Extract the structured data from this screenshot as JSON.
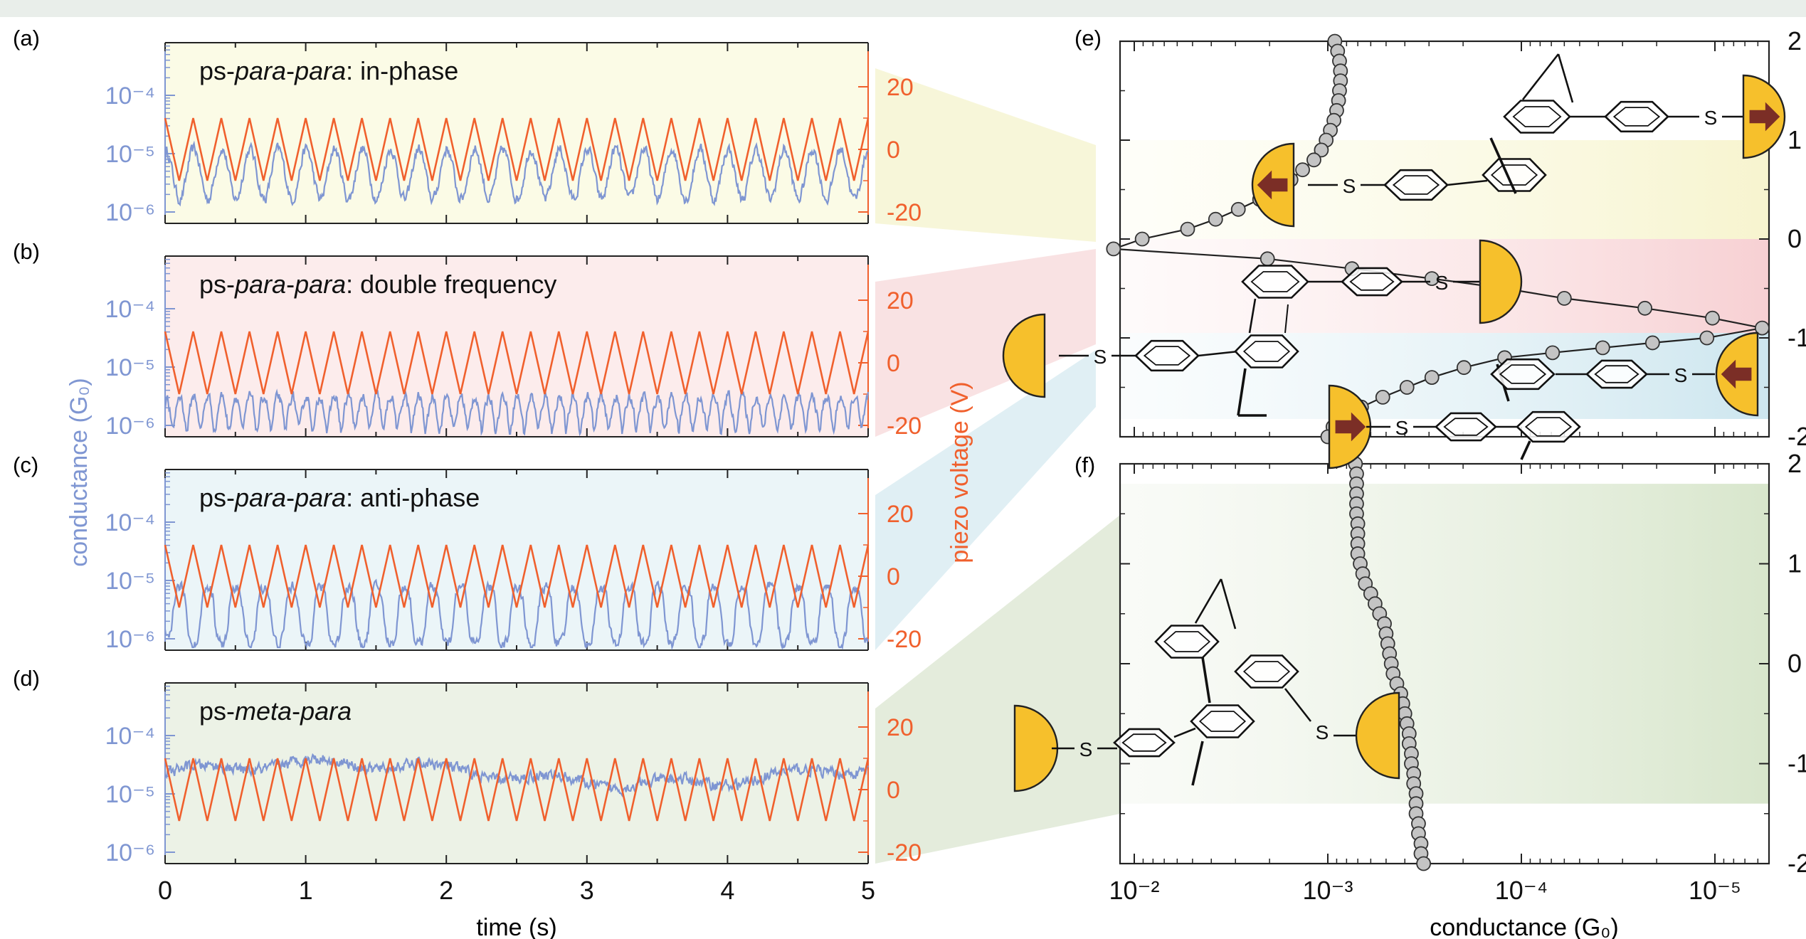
{
  "panel_labels": [
    "(a)",
    "(b)",
    "(c)",
    "(d)",
    "(e)",
    "(f)"
  ],
  "left_axes": {
    "ylabel": "conductance (G₀)",
    "ylabel_right": "piezo voltage (V)",
    "xlabel": "time (s)",
    "x_ticks": [
      "0",
      "1",
      "2",
      "3",
      "4",
      "5"
    ],
    "y_ticks_left": [
      "10⁻⁴",
      "10⁻⁵",
      "10⁻⁶"
    ],
    "y_ticks_right": [
      "20",
      "0",
      "-20"
    ]
  },
  "right_axes": {
    "xlabel": "conductance (G₀)",
    "x_ticks": [
      "10⁻²",
      "10⁻³",
      "10⁻⁴",
      "10⁻⁵"
    ],
    "y_ticks_e": [
      "2",
      "1",
      "0",
      "-1",
      "-2"
    ],
    "y_ticks_f": [
      "2",
      "1",
      "0",
      "-1",
      "-2"
    ]
  },
  "molecule_text": {
    "sulfur": "S"
  },
  "colors": {
    "conductance": "#7f96d2",
    "piezo": "#f0602d",
    "in_phase_bg": "#fbfbe6",
    "double_bg": "#fcecec",
    "anti_bg": "#ebf5f8",
    "meta_bg": "#ecf2e6",
    "gold": "#f6c02c",
    "arrow": "#7b2e26",
    "dot": "#c4c4c4"
  },
  "chart_data": [
    {
      "type": "line",
      "panel": "(a)",
      "title_parts": [
        "ps-",
        "para",
        "-",
        "para",
        ": in-phase"
      ],
      "x_range": [
        0,
        5
      ],
      "series": [
        {
          "axis": "piezo voltage (V)",
          "waveform": "triangle",
          "cycles": 25,
          "min": -10,
          "max": 10
        },
        {
          "axis": "conductance (G₀)",
          "log_range": [
            -5.9,
            -4.8
          ],
          "pattern": "in-phase"
        }
      ]
    },
    {
      "type": "line",
      "panel": "(b)",
      "title_parts": [
        "ps-",
        "para",
        "-",
        "para",
        ": double frequency"
      ],
      "x_range": [
        0,
        5
      ],
      "series": [
        {
          "axis": "piezo voltage (V)",
          "waveform": "triangle",
          "cycles": 25,
          "min": -10,
          "max": 10
        },
        {
          "axis": "conductance (G₀)",
          "log_range": [
            -6.2,
            -5.4
          ],
          "pattern": "double frequency"
        }
      ]
    },
    {
      "type": "line",
      "panel": "(c)",
      "title_parts": [
        "ps-",
        "para",
        "-",
        "para",
        ": anti-phase"
      ],
      "x_range": [
        0,
        5
      ],
      "series": [
        {
          "axis": "piezo voltage (V)",
          "waveform": "triangle",
          "cycles": 25,
          "min": -10,
          "max": 10
        },
        {
          "axis": "conductance (G₀)",
          "log_range": [
            -6.1,
            -5.1
          ],
          "pattern": "anti-phase"
        }
      ]
    },
    {
      "type": "line",
      "panel": "(d)",
      "title_parts": [
        "ps-",
        "meta",
        "-",
        "para",
        ""
      ],
      "x_range": [
        0,
        5
      ],
      "series": [
        {
          "axis": "piezo voltage (V)",
          "waveform": "triangle",
          "cycles": 25,
          "min": -10,
          "max": 10
        },
        {
          "axis": "conductance (G₀)",
          "log_range": [
            -4.9,
            -4.4
          ],
          "pattern": "flat"
        }
      ]
    },
    {
      "type": "scatter",
      "panel": "(e)",
      "x_scale": "log",
      "x_range": [
        0.01,
        5e-06
      ],
      "y_range": [
        -2,
        2
      ],
      "points": [
        [
          0.00092,
          2.0
        ],
        [
          0.00089,
          1.9
        ],
        [
          0.00087,
          1.8
        ],
        [
          0.00086,
          1.7
        ],
        [
          0.00086,
          1.6
        ],
        [
          0.00087,
          1.5
        ],
        [
          0.00088,
          1.4
        ],
        [
          0.0009,
          1.3
        ],
        [
          0.00093,
          1.2
        ],
        [
          0.00097,
          1.1
        ],
        [
          0.00102,
          1.0
        ],
        [
          0.00108,
          0.9
        ],
        [
          0.00118,
          0.8
        ],
        [
          0.00135,
          0.7
        ],
        [
          0.00155,
          0.6
        ],
        [
          0.00185,
          0.5
        ],
        [
          0.00225,
          0.4
        ],
        [
          0.0029,
          0.3
        ],
        [
          0.0038,
          0.2
        ],
        [
          0.0053,
          0.1
        ],
        [
          0.0091,
          0.0
        ],
        [
          0.0128,
          -0.1
        ],
        [
          0.00205,
          -0.2
        ],
        [
          0.00075,
          -0.3
        ],
        [
          0.00029,
          -0.4
        ],
        [
          0.000122,
          -0.5
        ],
        [
          6e-05,
          -0.6
        ],
        [
          2.3e-05,
          -0.7
        ],
        [
          1.03e-05,
          -0.8
        ],
        [
          5.7e-06,
          -0.9
        ],
        [
          1.1e-05,
          -1.0
        ],
        [
          2.1e-05,
          -1.05
        ],
        [
          3.8e-05,
          -1.1
        ],
        [
          6.9e-05,
          -1.15
        ],
        [
          0.000122,
          -1.2
        ],
        [
          0.000198,
          -1.3
        ],
        [
          0.00029,
          -1.4
        ],
        [
          0.00039,
          -1.5
        ],
        [
          0.00052,
          -1.6
        ],
        [
          0.00067,
          -1.7
        ],
        [
          0.00082,
          -1.8
        ],
        [
          0.00094,
          -1.9
        ],
        [
          0.001,
          -2.0
        ]
      ]
    },
    {
      "type": "scatter",
      "panel": "(f)",
      "x_scale": "log",
      "x_range": [
        0.01,
        5e-06
      ],
      "y_range": [
        -2,
        2
      ],
      "points": [
        [
          0.00072,
          2.0
        ],
        [
          0.00071,
          1.9
        ],
        [
          0.00071,
          1.8
        ],
        [
          0.00071,
          1.7
        ],
        [
          0.00071,
          1.6
        ],
        [
          0.00071,
          1.5
        ],
        [
          0.0007,
          1.4
        ],
        [
          0.0007,
          1.3
        ],
        [
          0.0007,
          1.2
        ],
        [
          0.0007,
          1.1
        ],
        [
          0.00068,
          1.0
        ],
        [
          0.00066,
          0.9
        ],
        [
          0.00064,
          0.8
        ],
        [
          0.0006,
          0.7
        ],
        [
          0.00057,
          0.6
        ],
        [
          0.00054,
          0.5
        ],
        [
          0.00051,
          0.4
        ],
        [
          0.0005,
          0.3
        ],
        [
          0.00049,
          0.2
        ],
        [
          0.00048,
          0.1
        ],
        [
          0.00047,
          0.0
        ],
        [
          0.00046,
          -0.1
        ],
        [
          0.00044,
          -0.2
        ],
        [
          0.00042,
          -0.3
        ],
        [
          0.00041,
          -0.4
        ],
        [
          0.0004,
          -0.5
        ],
        [
          0.00039,
          -0.6
        ],
        [
          0.00038,
          -0.7
        ],
        [
          0.00038,
          -0.8
        ],
        [
          0.00037,
          -0.9
        ],
        [
          0.00037,
          -1.0
        ],
        [
          0.00036,
          -1.1
        ],
        [
          0.00036,
          -1.2
        ],
        [
          0.00035,
          -1.3
        ],
        [
          0.00035,
          -1.4
        ],
        [
          0.00035,
          -1.5
        ],
        [
          0.00034,
          -1.6
        ],
        [
          0.00034,
          -1.7
        ],
        [
          0.00033,
          -1.8
        ],
        [
          0.00033,
          -1.9
        ],
        [
          0.00032,
          -2.0
        ]
      ]
    }
  ]
}
